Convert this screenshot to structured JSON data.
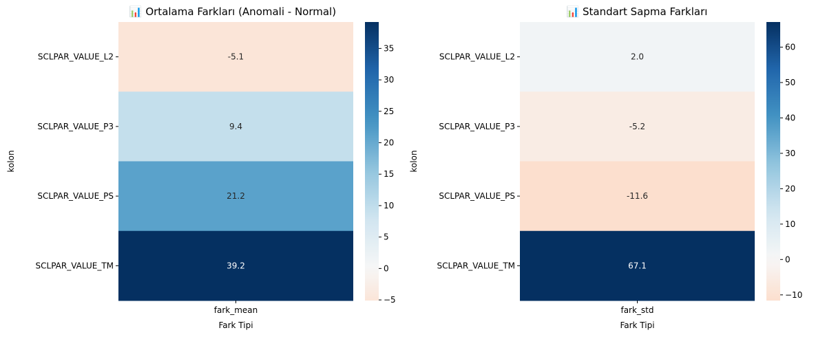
{
  "chart_data": [
    {
      "type": "heatmap",
      "title": "📊 Ortalama Farkları (Anomali - Normal)",
      "xlabel": "Fark Tipi",
      "ylabel": "kolon",
      "x_categories": [
        "fark_mean"
      ],
      "y_categories": [
        "SCLPAR_VALUE_L2",
        "SCLPAR_VALUE_P3",
        "SCLPAR_VALUE_PS",
        "SCLPAR_VALUE_TM"
      ],
      "values": [
        -5.1,
        9.4,
        21.2,
        39.2
      ],
      "annotations": [
        "-5.1",
        "9.4",
        "21.2",
        "39.2"
      ],
      "colormap": "RdBu_r",
      "center": 0,
      "colorbar": {
        "range": [
          -5.1,
          39.2
        ],
        "ticks": [
          -5,
          0,
          5,
          10,
          15,
          20,
          25,
          30,
          35
        ]
      }
    },
    {
      "type": "heatmap",
      "title": "📊 Standart Sapma Farkları",
      "xlabel": "Fark Tipi",
      "ylabel": "kolon",
      "x_categories": [
        "fark_std"
      ],
      "y_categories": [
        "SCLPAR_VALUE_L2",
        "SCLPAR_VALUE_P3",
        "SCLPAR_VALUE_PS",
        "SCLPAR_VALUE_TM"
      ],
      "values": [
        2.0,
        -5.2,
        -11.6,
        67.1
      ],
      "annotations": [
        "2.0",
        "-5.2",
        "-11.6",
        "67.1"
      ],
      "colormap": "RdBu_r",
      "center": 0,
      "colorbar": {
        "range": [
          -11.6,
          67.1
        ],
        "ticks": [
          -10,
          0,
          10,
          20,
          30,
          40,
          50,
          60
        ]
      }
    }
  ]
}
